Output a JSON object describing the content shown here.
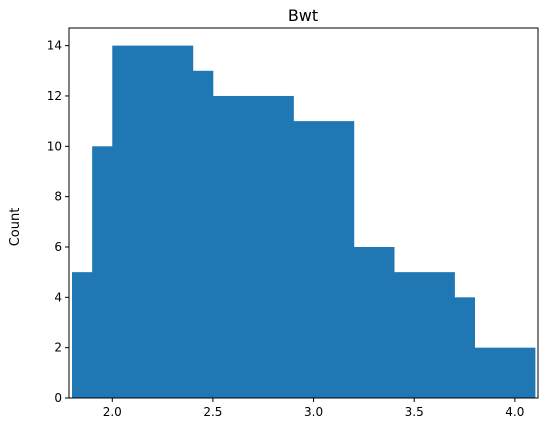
{
  "chart_data": {
    "type": "bar",
    "subtype": "histogram",
    "title": "Bwt",
    "xlabel": "",
    "ylabel": "Count",
    "bar_color": "#1f77b4",
    "bins": [
      {
        "x0": 1.8,
        "x1": 1.9,
        "count": 5
      },
      {
        "x0": 1.9,
        "x1": 2.0,
        "count": 10
      },
      {
        "x0": 2.0,
        "x1": 2.4,
        "count": 14
      },
      {
        "x0": 2.4,
        "x1": 2.5,
        "count": 13
      },
      {
        "x0": 2.5,
        "x1": 2.9,
        "count": 12
      },
      {
        "x0": 2.9,
        "x1": 3.2,
        "count": 11
      },
      {
        "x0": 3.2,
        "x1": 3.4,
        "count": 6
      },
      {
        "x0": 3.4,
        "x1": 3.7,
        "count": 5
      },
      {
        "x0": 3.7,
        "x1": 3.8,
        "count": 4
      },
      {
        "x0": 3.8,
        "x1": 4.1,
        "count": 2
      }
    ],
    "xlim": [
      1.785,
      4.115
    ],
    "ylim": [
      0,
      14.7
    ],
    "xticks": [
      2.0,
      2.5,
      3.0,
      3.5,
      4.0
    ],
    "xtick_labels": [
      "2.0",
      "2.5",
      "3.0",
      "3.5",
      "4.0"
    ],
    "yticks": [
      0,
      2,
      4,
      6,
      8,
      10,
      12,
      14
    ],
    "ytick_labels": [
      "0",
      "2",
      "4",
      "6",
      "8",
      "10",
      "12",
      "14"
    ]
  }
}
